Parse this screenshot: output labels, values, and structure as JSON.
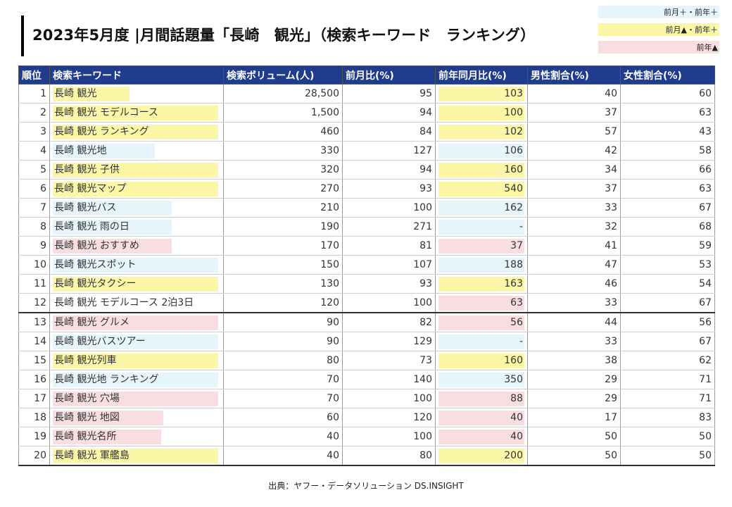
{
  "title": "2023年5月度 |月間話題量「長崎　観光」（検索キーワード　ランキング）",
  "legend": [
    {
      "label": "前月＋・前年＋",
      "color": "#e6f4fb"
    },
    {
      "label": "前月▲・前年＋",
      "color": "#fbf7a6"
    },
    {
      "label": "前年▲",
      "color": "#f8dde1"
    }
  ],
  "headers": [
    "順位",
    "検索キーワード",
    "検索ボリューム(人)",
    "前月比(%)",
    "前年同月比(%)",
    "男性割合(%)",
    "女性割合(%)"
  ],
  "rows": [
    {
      "rank": "1",
      "keyword": "長崎 観光",
      "volume": "28,500",
      "mom": "95",
      "yoy": "103",
      "male": "40",
      "female": "60",
      "hl": "yellow",
      "kw_pct": 45
    },
    {
      "rank": "2",
      "keyword": "長崎 観光 モデルコース",
      "volume": "1,500",
      "mom": "94",
      "yoy": "100",
      "male": "37",
      "female": "63",
      "hl": "yellow",
      "kw_pct": 98
    },
    {
      "rank": "3",
      "keyword": "長崎 観光 ランキング",
      "volume": "460",
      "mom": "84",
      "yoy": "102",
      "male": "57",
      "female": "43",
      "hl": "yellow",
      "kw_pct": 98
    },
    {
      "rank": "4",
      "keyword": "長崎 観光地",
      "volume": "330",
      "mom": "127",
      "yoy": "106",
      "male": "42",
      "female": "58",
      "hl": "blue",
      "kw_pct": 60
    },
    {
      "rank": "5",
      "keyword": "長崎 観光 子供",
      "volume": "320",
      "mom": "94",
      "yoy": "160",
      "male": "34",
      "female": "66",
      "hl": "yellow",
      "kw_pct": 98
    },
    {
      "rank": "6",
      "keyword": "長崎 観光マップ",
      "volume": "270",
      "mom": "93",
      "yoy": "540",
      "male": "37",
      "female": "63",
      "hl": "yellow",
      "kw_pct": 98
    },
    {
      "rank": "7",
      "keyword": "長崎 観光バス",
      "volume": "210",
      "mom": "100",
      "yoy": "162",
      "male": "33",
      "female": "67",
      "hl": "blue",
      "kw_pct": 70
    },
    {
      "rank": "8",
      "keyword": "長崎 観光 雨の日",
      "volume": "190",
      "mom": "271",
      "yoy": "-",
      "male": "32",
      "female": "68",
      "hl": "blue",
      "kw_pct": 70
    },
    {
      "rank": "9",
      "keyword": "長崎 観光 おすすめ",
      "volume": "170",
      "mom": "81",
      "yoy": "37",
      "male": "41",
      "female": "59",
      "hl": "pink",
      "kw_pct": 70
    },
    {
      "rank": "10",
      "keyword": "長崎 観光スポット",
      "volume": "150",
      "mom": "107",
      "yoy": "188",
      "male": "47",
      "female": "53",
      "hl": "blue",
      "kw_pct": 98
    },
    {
      "rank": "11",
      "keyword": "長崎 観光タクシー",
      "volume": "130",
      "mom": "93",
      "yoy": "163",
      "male": "46",
      "female": "54",
      "hl": "yellow",
      "kw_pct": 98
    },
    {
      "rank": "12",
      "keyword": "長崎 観光 モデルコース 2泊3日",
      "volume": "120",
      "mom": "100",
      "yoy": "63",
      "male": "33",
      "female": "67",
      "hl": "pink",
      "kw_pct": 0
    },
    {
      "rank": "13",
      "keyword": "長崎 観光 グルメ",
      "volume": "90",
      "mom": "82",
      "yoy": "56",
      "male": "44",
      "female": "56",
      "hl": "pink",
      "kw_pct": 98
    },
    {
      "rank": "14",
      "keyword": "長崎 観光バスツアー",
      "volume": "90",
      "mom": "129",
      "yoy": "-",
      "male": "33",
      "female": "67",
      "hl": "blue",
      "kw_pct": 98
    },
    {
      "rank": "15",
      "keyword": "長崎 観光列車",
      "volume": "80",
      "mom": "73",
      "yoy": "160",
      "male": "38",
      "female": "62",
      "hl": "yellow",
      "kw_pct": 98
    },
    {
      "rank": "16",
      "keyword": "長崎 観光地 ランキング",
      "volume": "70",
      "mom": "140",
      "yoy": "350",
      "male": "29",
      "female": "71",
      "hl": "blue",
      "kw_pct": 98
    },
    {
      "rank": "17",
      "keyword": "長崎 観光 穴場",
      "volume": "70",
      "mom": "100",
      "yoy": "88",
      "male": "29",
      "female": "71",
      "hl": "pink",
      "kw_pct": 98
    },
    {
      "rank": "18",
      "keyword": "長崎 観光 地図",
      "volume": "60",
      "mom": "120",
      "yoy": "40",
      "male": "17",
      "female": "83",
      "hl": "pink",
      "kw_pct": 65
    },
    {
      "rank": "19",
      "keyword": "長崎 観光名所",
      "volume": "40",
      "mom": "100",
      "yoy": "40",
      "male": "50",
      "female": "50",
      "hl": "pink",
      "kw_pct": 64
    },
    {
      "rank": "20",
      "keyword": "長崎 観光 軍艦島",
      "volume": "40",
      "mom": "80",
      "yoy": "200",
      "male": "50",
      "female": "50",
      "hl": "yellow",
      "kw_pct": 98
    }
  ],
  "source": "出典：ヤフー・データソリューション DS.INSIGHT"
}
